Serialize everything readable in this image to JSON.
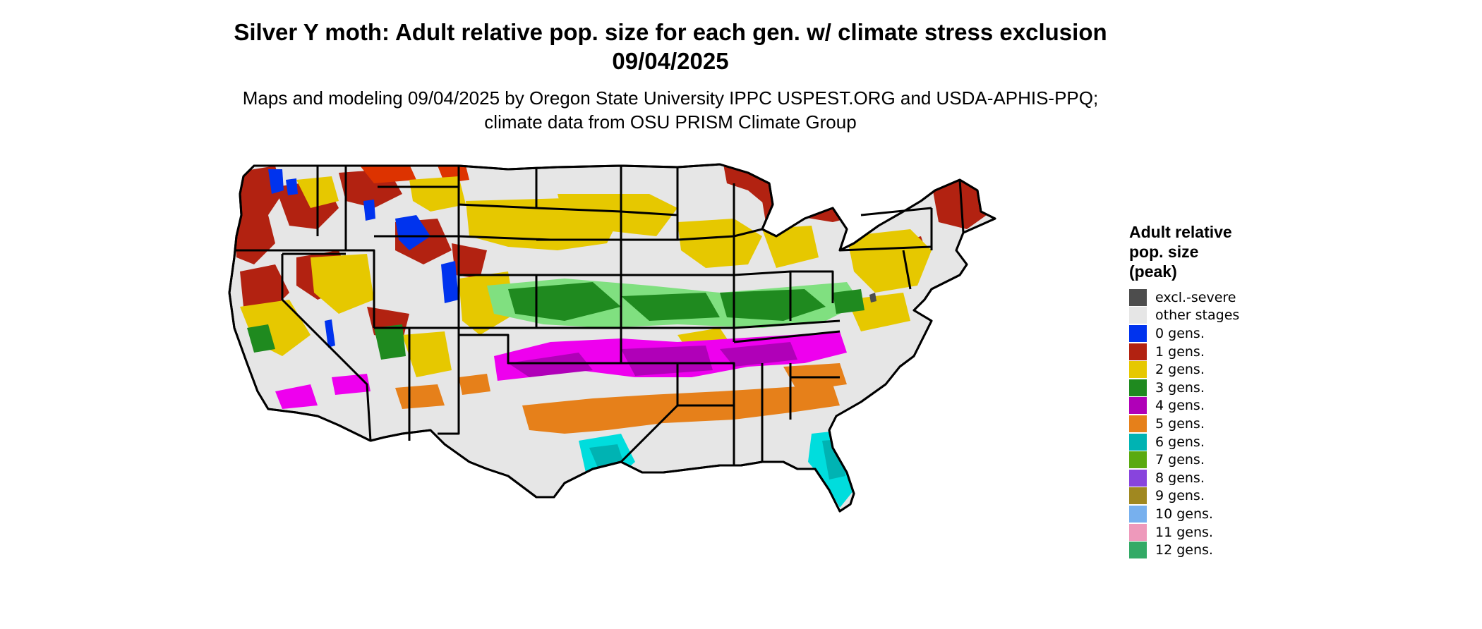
{
  "title": "Silver Y moth: Adult relative pop. size for each gen. w/ climate stress exclusion 09/04/2025",
  "subtitle": "Maps and modeling 09/04/2025 by Oregon State University IPPC USPEST.ORG and USDA-APHIS-PPQ; climate data from OSU PRISM Climate Group",
  "legend": {
    "title": "Adult relative\npop. size\n(peak)",
    "items": [
      {
        "label": "excl.-severe",
        "color": "#4d4d4d"
      },
      {
        "label": "other stages",
        "color": "#e6e6e6"
      },
      {
        "label": "0 gens.",
        "color": "#0033ee"
      },
      {
        "label": "1 gens.",
        "color": "#b22211"
      },
      {
        "label": "2 gens.",
        "color": "#e6c800"
      },
      {
        "label": "3 gens.",
        "color": "#1f8a1f"
      },
      {
        "label": "4 gens.",
        "color": "#b000b8"
      },
      {
        "label": "5 gens.",
        "color": "#e6801a"
      },
      {
        "label": "6 gens.",
        "color": "#00b3b3"
      },
      {
        "label": "7 gens.",
        "color": "#5aaa10"
      },
      {
        "label": "8 gens.",
        "color": "#8844dd"
      },
      {
        "label": "9 gens.",
        "color": "#a08820"
      },
      {
        "label": "10 gens.",
        "color": "#77b0ee"
      },
      {
        "label": "11 gens.",
        "color": "#ee99bb"
      },
      {
        "label": "12 gens.",
        "color": "#33aa66"
      }
    ]
  },
  "map": {
    "background_color": "#e6e6e6",
    "border_color": "#000000",
    "bright_colors": {
      "4 gens.": "#ee00ee",
      "3 gens.": "#80e080",
      "6 gens.": "#00dddd",
      "1 gens.": "#dd3300"
    }
  }
}
